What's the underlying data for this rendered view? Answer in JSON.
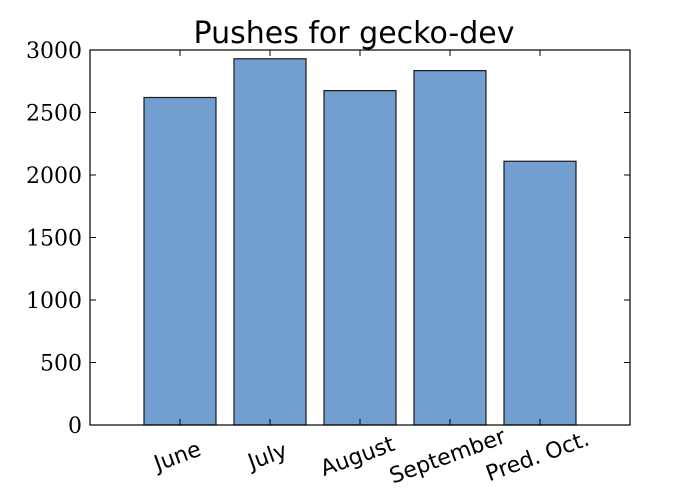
{
  "chart_data": {
    "type": "bar",
    "title": "Pushes for gecko-dev",
    "xlabel": "",
    "ylabel": "",
    "categories": [
      "June",
      "July",
      "August",
      "September",
      "Pred. Oct."
    ],
    "values": [
      2620,
      2930,
      2675,
      2835,
      2110
    ],
    "ylim": [
      0,
      3000
    ],
    "yticks": [
      "0",
      "500",
      "1000",
      "1500",
      "2000",
      "2500",
      "3000"
    ],
    "bar_color": "#729fcf",
    "grid": false,
    "legend": "none"
  }
}
